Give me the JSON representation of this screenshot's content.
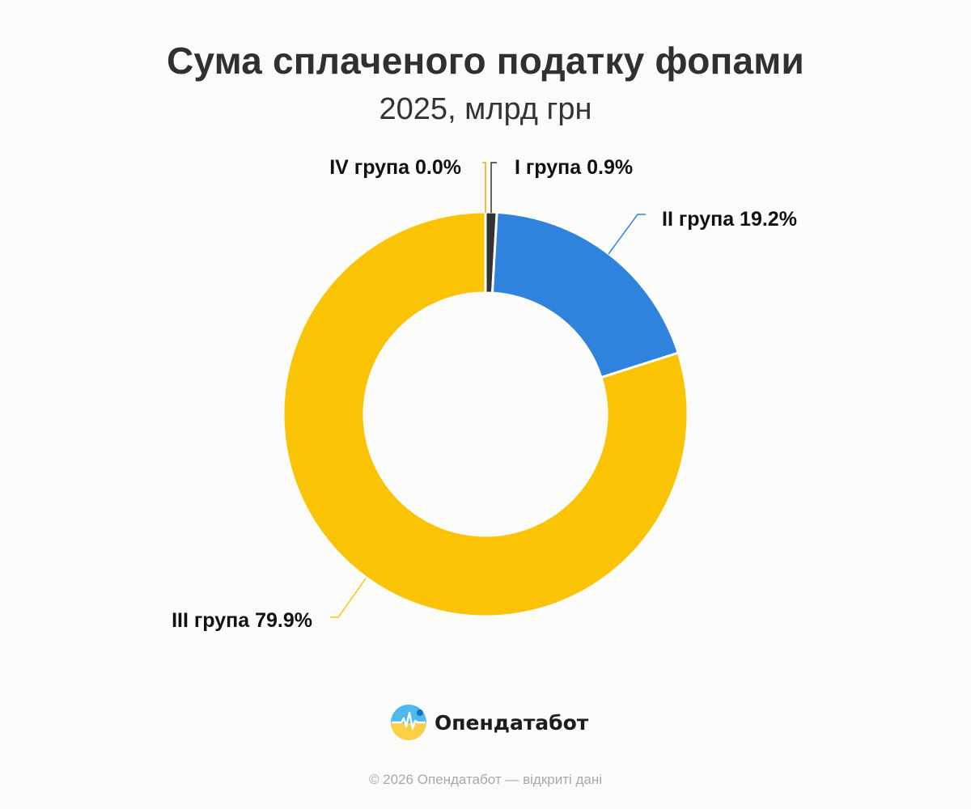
{
  "chart_data": {
    "type": "pie",
    "title": "Сума сплаченого податку фопами",
    "subtitle": "2025, млрд грн",
    "slices": [
      {
        "label": "IV група",
        "value": 0.0,
        "display": "IV група 0.0%",
        "color": "#f39c12",
        "label_side": "left"
      },
      {
        "label": "I група",
        "value": 0.9,
        "display": "I група 0.9%",
        "color": "#333333",
        "label_side": "right"
      },
      {
        "label": "II група",
        "value": 19.2,
        "display": "II група 19.2%",
        "color": "#2f83dc",
        "label_side": "right"
      },
      {
        "label": "III група",
        "value": 79.9,
        "display": "III група 79.9%",
        "color": "#fbc305",
        "label_side": "left"
      }
    ],
    "donut": true,
    "legend": "none",
    "labels": "outside-with-leader-lines"
  },
  "brand": {
    "name": "Опендатабот",
    "logo_icon": "opendatabot-logo-icon"
  },
  "footer": {
    "copyright": "© 2026 Опендатабот — відкриті дані"
  },
  "colors": {
    "background": "#fbfbf9",
    "title": "#2f3033",
    "footer_text": "#a8a8a8"
  }
}
